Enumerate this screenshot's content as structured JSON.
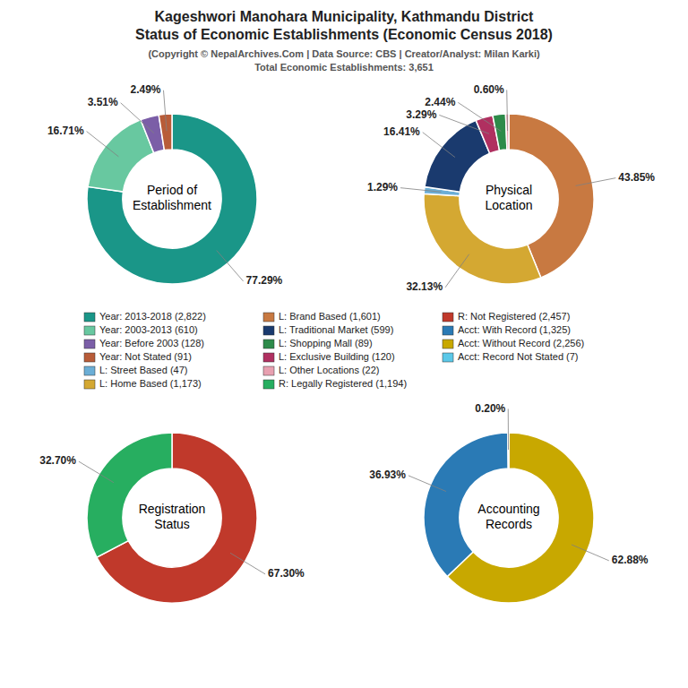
{
  "title": "Kageshwori Manohara Municipality, Kathmandu District\nStatus of Economic Establishments (Economic Census 2018)",
  "subtitle": "(Copyright © NepalArchives.Com | Data Source: CBS | Creator/Analyst: Milan Karki)\nTotal Economic Establishments: 3,651",
  "legend_entries": [
    {
      "label": "Year: 2013-2018 (2,822)",
      "color": "#1a9688"
    },
    {
      "label": "Year: 2003-2013 (610)",
      "color": "#68c8a0"
    },
    {
      "label": "Year: Before 2003 (128)",
      "color": "#7b5ea7"
    },
    {
      "label": "Year: Not Stated (91)",
      "color": "#b85c38"
    },
    {
      "label": "L: Street Based (47)",
      "color": "#6baed6"
    },
    {
      "label": "L: Home Based (1,173)",
      "color": "#d4a832"
    },
    {
      "label": "L: Brand Based (1,601)",
      "color": "#c87941"
    },
    {
      "label": "L: Traditional Market (599)",
      "color": "#1a3a6e"
    },
    {
      "label": "L: Shopping Mall (89)",
      "color": "#2e8b4a"
    },
    {
      "label": "L: Exclusive Building (120)",
      "color": "#b03060"
    },
    {
      "label": "L: Other Locations (22)",
      "color": "#e8a0b0"
    },
    {
      "label": "R: Legally Registered (1,194)",
      "color": "#27ae60"
    },
    {
      "label": "R: Not Registered (2,457)",
      "color": "#c0392b"
    },
    {
      "label": "Acct: With Record (1,325)",
      "color": "#2a7ab5"
    },
    {
      "label": "Acct: Without Record (2,256)",
      "color": "#c8a800"
    },
    {
      "label": "Acct: Record Not Stated (7)",
      "color": "#5bc8e8"
    }
  ],
  "chart_data": [
    {
      "type": "pie",
      "title": "Period of\nEstablishment",
      "values": [
        77.29,
        16.71,
        3.51,
        2.49
      ],
      "value_labels": [
        "77.29%",
        "16.71%",
        "3.51%",
        "2.49%"
      ],
      "colors": [
        "#1a9688",
        "#68c8a0",
        "#7b5ea7",
        "#b85c38"
      ],
      "data_labels": true
    },
    {
      "type": "pie",
      "title": "Physical\nLocation",
      "values": [
        43.85,
        32.13,
        1.29,
        16.41,
        3.29,
        2.44,
        0.6
      ],
      "value_labels": [
        "43.85%",
        "32.13%",
        "1.29%",
        "16.41%",
        "3.29%",
        "2.44%",
        "0.60%"
      ],
      "colors": [
        "#c87941",
        "#d4a832",
        "#6baed6",
        "#1a3a6e",
        "#b03060",
        "#2e8b4a",
        "#e8a0b0"
      ],
      "data_labels": true
    },
    {
      "type": "pie",
      "title": "Registration\nStatus",
      "values": [
        67.3,
        32.7
      ],
      "value_labels": [
        "67.30%",
        "32.70%"
      ],
      "colors": [
        "#c0392b",
        "#27ae60"
      ],
      "data_labels": true
    },
    {
      "type": "pie",
      "title": "Accounting\nRecords",
      "values": [
        62.88,
        36.93,
        0.2
      ],
      "value_labels": [
        "62.88%",
        "36.93%",
        "0.20%"
      ],
      "colors": [
        "#c8a800",
        "#2a7ab5",
        "#5bc8e8"
      ],
      "data_labels": true
    }
  ]
}
